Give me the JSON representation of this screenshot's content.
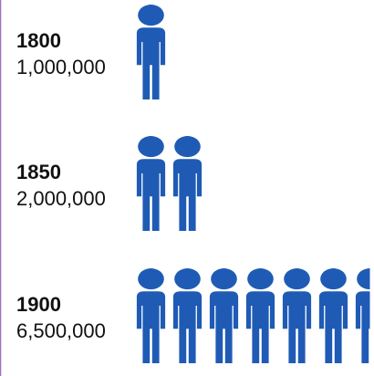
{
  "chart_data": {
    "type": "pictograph",
    "categories": [
      "1800",
      "1850",
      "1900"
    ],
    "values": [
      1000000,
      2000000,
      6500000
    ],
    "value_labels": [
      "1,000,000",
      "2,000,000",
      "6,500,000"
    ],
    "color": "#1f5bb5"
  }
}
